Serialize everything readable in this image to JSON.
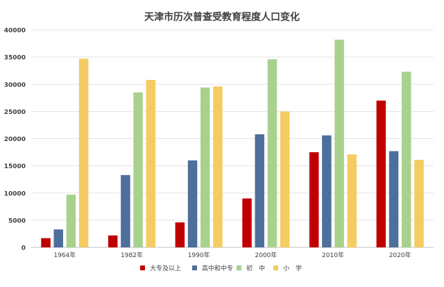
{
  "chart_data": {
    "type": "bar",
    "title": "天津市历次普查受教育程度人口变化",
    "categories": [
      "1964年",
      "1982年",
      "1990年",
      "2000年",
      "2010年",
      "2020年"
    ],
    "series": [
      {
        "name": "大专及以上",
        "color": "#c00000",
        "values": [
          1700,
          2200,
          4600,
          9000,
          17500,
          27000
        ]
      },
      {
        "name": "高中和中专",
        "color": "#4e6f9b",
        "values": [
          3300,
          13300,
          16000,
          20800,
          20600,
          17700
        ]
      },
      {
        "name": "初　中",
        "color": "#a9d18e",
        "values": [
          9700,
          28500,
          29400,
          34600,
          38200,
          32300
        ]
      },
      {
        "name": "小　学",
        "color": "#f4cc62",
        "values": [
          34700,
          30800,
          29600,
          25000,
          17100,
          16100
        ]
      }
    ],
    "ylim": [
      0,
      40000
    ],
    "yticks": [
      0,
      5000,
      10000,
      15000,
      20000,
      25000,
      30000,
      35000,
      40000
    ],
    "grid": true,
    "legend_position": "bottom"
  }
}
